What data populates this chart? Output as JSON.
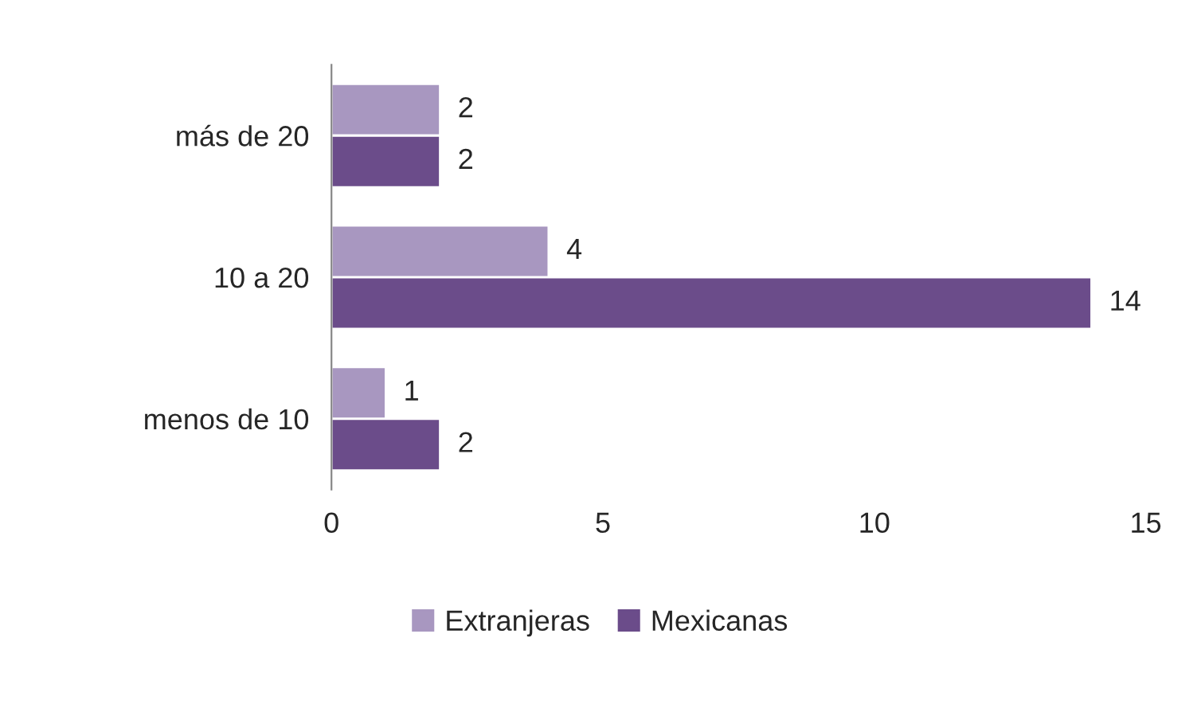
{
  "chart_data": {
    "type": "bar",
    "orientation": "horizontal",
    "categories": [
      "más de 20",
      "10 a 20",
      "menos de 10"
    ],
    "series": [
      {
        "name": "Extranjeras",
        "color": "#a897c0",
        "values": [
          2,
          4,
          1
        ]
      },
      {
        "name": "Mexicanas",
        "color": "#6b4c8a",
        "values": [
          2,
          14,
          2
        ]
      }
    ],
    "xlim": [
      0,
      15
    ],
    "xticks": [
      0,
      5,
      10,
      15
    ],
    "data_labels": true,
    "legend": "bottom",
    "grid": false
  }
}
